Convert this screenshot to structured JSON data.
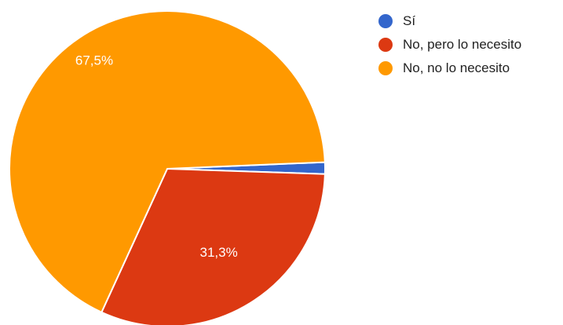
{
  "chart_data": {
    "type": "pie",
    "title": "",
    "categories": [
      "Sí",
      "No, pero lo necesito",
      "No, no lo necesito"
    ],
    "values": [
      1.2,
      31.3,
      67.5
    ],
    "data_labels": [
      "",
      "31,3%",
      "67,5%"
    ],
    "colors": [
      "#3366cc",
      "#dc3912",
      "#ff9900"
    ],
    "legend_position": "right"
  }
}
